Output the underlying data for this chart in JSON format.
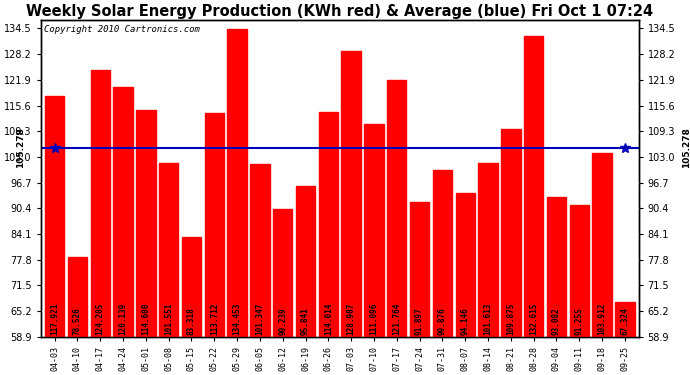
{
  "title": "Weekly Solar Energy Production (KWh red) & Average (blue) Fri Oct 1 07:24",
  "copyright": "Copyright 2010 Cartronics.com",
  "categories": [
    "04-03",
    "04-10",
    "04-17",
    "04-24",
    "05-01",
    "05-08",
    "05-15",
    "05-22",
    "05-29",
    "06-05",
    "06-12",
    "06-19",
    "06-26",
    "07-03",
    "07-10",
    "07-17",
    "07-24",
    "07-31",
    "08-07",
    "08-14",
    "08-21",
    "08-28",
    "09-04",
    "09-11",
    "09-18",
    "09-25"
  ],
  "values": [
    117.921,
    78.526,
    124.205,
    120.139,
    114.6,
    101.551,
    83.318,
    113.712,
    134.453,
    101.347,
    90.239,
    95.841,
    114.014,
    128.907,
    111.096,
    121.764,
    91.897,
    99.876,
    94.146,
    101.613,
    109.875,
    132.615,
    93.082,
    91.255,
    103.912,
    67.324
  ],
  "average": 105.278,
  "bar_color": "#ff0000",
  "avg_line_color": "#0000bb",
  "background_color": "#ffffff",
  "plot_bg_color": "#ffffff",
  "grid_color": "#aaaaaa",
  "ylim_min": 58.9,
  "ylim_max": 136.5,
  "yticks": [
    58.9,
    65.2,
    71.5,
    77.8,
    84.1,
    90.4,
    96.7,
    103.0,
    109.3,
    115.6,
    121.9,
    128.2,
    134.5
  ],
  "title_fontsize": 10.5,
  "copyright_fontsize": 6.5,
  "bar_label_fontsize": 5.5,
  "avg_label": "105.278",
  "avg_label_fontsize": 6.5
}
